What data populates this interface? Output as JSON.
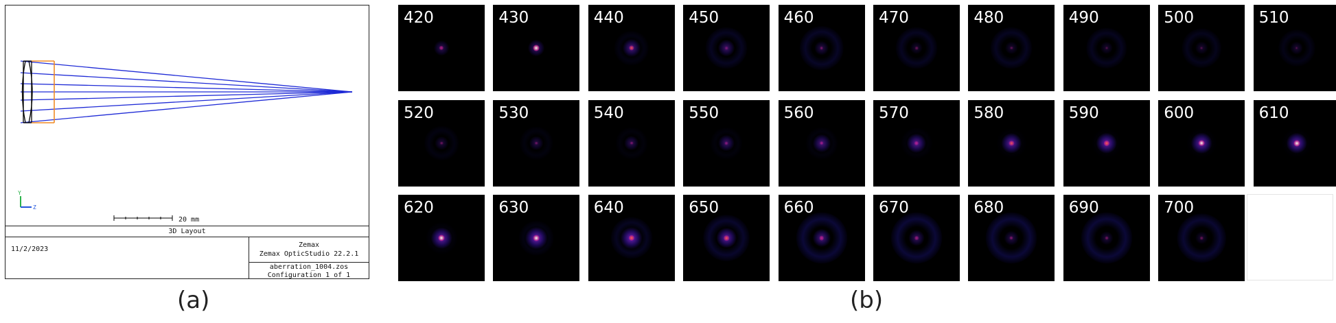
{
  "layout": {
    "scale_label": "20 mm",
    "title": "3D Layout",
    "date": "11/2/2023",
    "brand": "Zemax",
    "software": "Zemax OpticStudio 22.2.1",
    "filename": "aberration_1004.zos",
    "configuration": "Configuration 1 of 1",
    "axis_labels": {
      "y": "Y",
      "z": "Z"
    },
    "colors": {
      "rays": "#1f2bd6",
      "lens": "#000000",
      "stop": "#f08a24",
      "axis_y": "#2bb34a",
      "axis_z": "#2255dd"
    }
  },
  "captions": {
    "a": "(a)",
    "b": "(b)"
  },
  "psf_tiles": [
    {
      "wavelength": "420",
      "core": 0.55,
      "halo": 0.35,
      "ring": 0.0
    },
    {
      "wavelength": "430",
      "core": 1.0,
      "halo": 0.45,
      "ring": 0.0
    },
    {
      "wavelength": "440",
      "core": 0.7,
      "halo": 0.55,
      "ring": 0.15
    },
    {
      "wavelength": "450",
      "core": 0.25,
      "halo": 0.45,
      "ring": 0.3
    },
    {
      "wavelength": "460",
      "core": 0.3,
      "halo": 0.3,
      "ring": 0.35
    },
    {
      "wavelength": "470",
      "core": 0.25,
      "halo": 0.2,
      "ring": 0.3
    },
    {
      "wavelength": "480",
      "core": 0.2,
      "halo": 0.2,
      "ring": 0.3
    },
    {
      "wavelength": "490",
      "core": 0.15,
      "halo": 0.2,
      "ring": 0.28
    },
    {
      "wavelength": "500",
      "core": 0.15,
      "halo": 0.2,
      "ring": 0.25
    },
    {
      "wavelength": "510",
      "core": 0.15,
      "halo": 0.22,
      "ring": 0.2
    },
    {
      "wavelength": "520",
      "core": 0.25,
      "halo": 0.25,
      "ring": 0.15
    },
    {
      "wavelength": "530",
      "core": 0.25,
      "halo": 0.3,
      "ring": 0.12
    },
    {
      "wavelength": "540",
      "core": 0.3,
      "halo": 0.35,
      "ring": 0.1
    },
    {
      "wavelength": "550",
      "core": 0.35,
      "halo": 0.45,
      "ring": 0.1
    },
    {
      "wavelength": "560",
      "core": 0.45,
      "halo": 0.55,
      "ring": 0.1
    },
    {
      "wavelength": "570",
      "core": 0.55,
      "halo": 0.65,
      "ring": 0.08
    },
    {
      "wavelength": "580",
      "core": 0.7,
      "halo": 0.7,
      "ring": 0.05
    },
    {
      "wavelength": "590",
      "core": 0.85,
      "halo": 0.75,
      "ring": 0.05
    },
    {
      "wavelength": "600",
      "core": 0.95,
      "halo": 0.75,
      "ring": 0.05
    },
    {
      "wavelength": "610",
      "core": 1.0,
      "halo": 0.75,
      "ring": 0.05
    },
    {
      "wavelength": "620",
      "core": 1.0,
      "halo": 0.75,
      "ring": 0.08
    },
    {
      "wavelength": "630",
      "core": 0.95,
      "halo": 0.8,
      "ring": 0.15
    },
    {
      "wavelength": "640",
      "core": 0.85,
      "halo": 0.8,
      "ring": 0.3
    },
    {
      "wavelength": "650",
      "core": 0.75,
      "halo": 0.7,
      "ring": 0.4
    },
    {
      "wavelength": "660",
      "core": 0.6,
      "halo": 0.55,
      "ring": 0.5
    },
    {
      "wavelength": "670",
      "core": 0.45,
      "halo": 0.4,
      "ring": 0.5
    },
    {
      "wavelength": "680",
      "core": 0.35,
      "halo": 0.3,
      "ring": 0.5
    },
    {
      "wavelength": "690",
      "core": 0.3,
      "halo": 0.25,
      "ring": 0.5
    },
    {
      "wavelength": "700",
      "core": 0.25,
      "halo": 0.2,
      "ring": 0.45
    }
  ]
}
